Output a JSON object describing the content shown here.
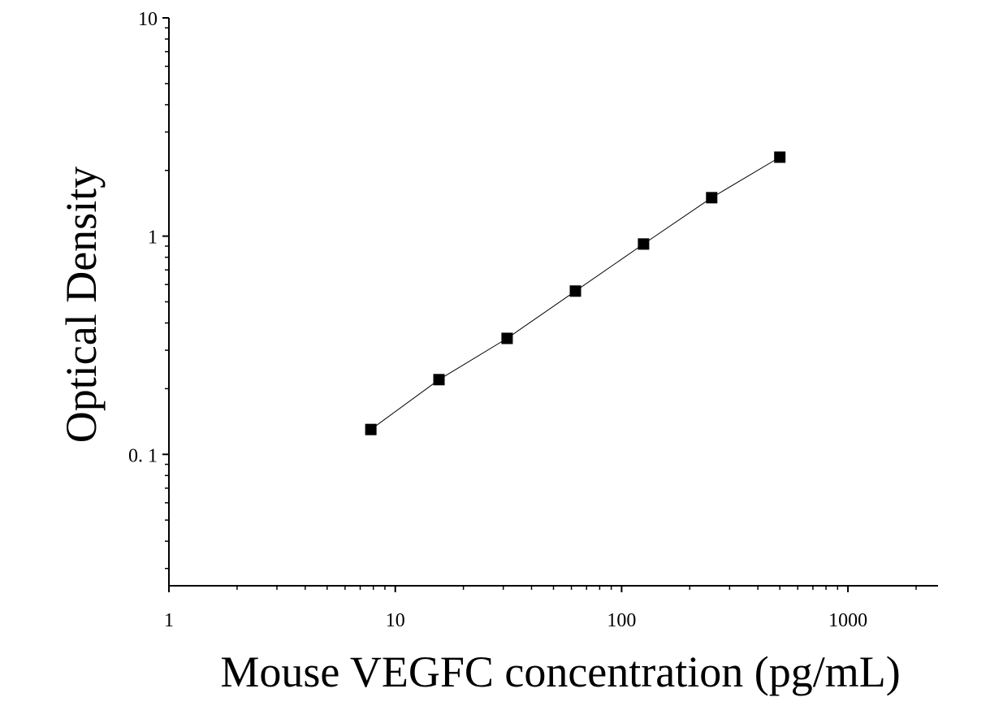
{
  "chart_data": {
    "type": "scatter",
    "title": "",
    "xlabel": "Mouse VEGFC concentration (pg/mL)",
    "ylabel": "Optical Density",
    "x_scale": "log",
    "y_scale": "log",
    "xlim": [
      1,
      2500
    ],
    "ylim": [
      0.025,
      10
    ],
    "x_ticks": [
      {
        "value": 1,
        "label": "1"
      },
      {
        "value": 10,
        "label": "10"
      },
      {
        "value": 100,
        "label": "100"
      },
      {
        "value": 1000,
        "label": "1000"
      }
    ],
    "y_ticks": [
      {
        "value": 0.1,
        "label": "0. 1"
      },
      {
        "value": 1,
        "label": "1"
      },
      {
        "value": 10,
        "label": "10"
      }
    ],
    "grid": false,
    "marker": "square",
    "fit_line": true,
    "series": [
      {
        "points": [
          {
            "x": 7.8,
            "y": 0.13
          },
          {
            "x": 15.6,
            "y": 0.22
          },
          {
            "x": 31.2,
            "y": 0.34
          },
          {
            "x": 62.5,
            "y": 0.56
          },
          {
            "x": 125,
            "y": 0.92
          },
          {
            "x": 250,
            "y": 1.5
          },
          {
            "x": 500,
            "y": 2.3
          }
        ]
      }
    ],
    "colors": {
      "marker": "#000000",
      "line": "#000000",
      "axis": "#000000"
    }
  }
}
